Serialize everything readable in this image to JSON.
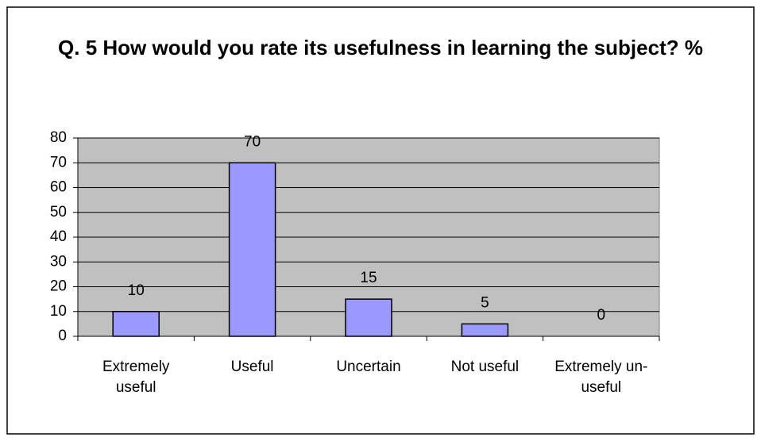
{
  "chart_data": {
    "type": "bar",
    "title": "Q. 5 How would you rate its usefulness in learning the subject? %",
    "categories": [
      "Extremely useful",
      "Useful",
      "Uncertain",
      "Not useful",
      "Extremely un-useful"
    ],
    "values": [
      10,
      70,
      15,
      5,
      0
    ],
    "color": "#9999ff",
    "ylim": [
      0,
      80
    ],
    "yticks": [
      0,
      10,
      20,
      30,
      40,
      50,
      60,
      70,
      80
    ],
    "grid": true
  }
}
